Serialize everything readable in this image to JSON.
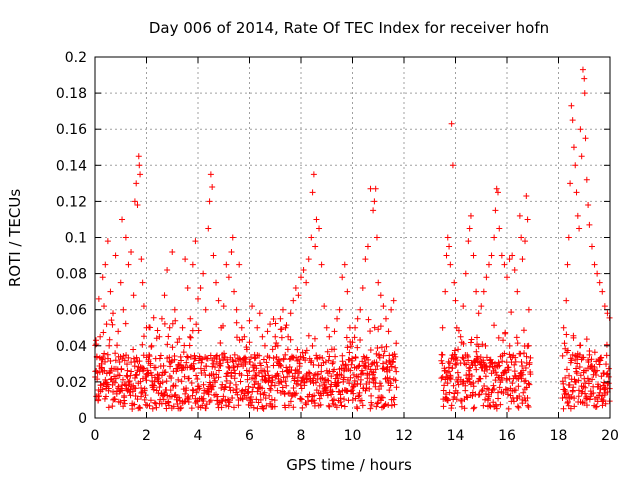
{
  "chart_data": {
    "type": "scatter",
    "title": "Day 006 of 2014, Rate Of TEC Index for receiver hofn",
    "xlabel": "GPS time / hours",
    "ylabel": "ROTI / TECUs",
    "xlim": [
      0,
      20
    ],
    "ylim": [
      0,
      0.2
    ],
    "grid": true,
    "marker": "+",
    "color": "#ff0000",
    "xticks": [
      "0",
      "2",
      "4",
      "6",
      "8",
      "10",
      "12",
      "14",
      "16",
      "18",
      "20"
    ],
    "yticks": [
      "0",
      "0.02",
      "0.04",
      "0.06",
      "0.08",
      "0.1",
      "0.12",
      "0.14",
      "0.16",
      "0.18",
      "0.2"
    ],
    "series": [
      {
        "name": "ROTI",
        "points": [
          [
            0.05,
            0.012
          ],
          [
            0.1,
            0.025
          ],
          [
            0.15,
            0.066
          ],
          [
            0.2,
            0.045
          ],
          [
            0.25,
            0.03
          ],
          [
            0.3,
            0.078
          ],
          [
            0.35,
            0.062
          ],
          [
            0.4,
            0.085
          ],
          [
            0.45,
            0.052
          ],
          [
            0.5,
            0.098
          ],
          [
            0.55,
            0.04
          ],
          [
            0.6,
            0.07
          ],
          [
            0.7,
            0.058
          ],
          [
            0.8,
            0.09
          ],
          [
            0.9,
            0.048
          ],
          [
            1.0,
            0.075
          ],
          [
            1.05,
            0.11
          ],
          [
            1.1,
            0.06
          ],
          [
            1.2,
            0.1
          ],
          [
            1.3,
            0.085
          ],
          [
            1.4,
            0.092
          ],
          [
            1.5,
            0.068
          ],
          [
            1.55,
            0.12
          ],
          [
            1.6,
            0.13
          ],
          [
            1.65,
            0.118
          ],
          [
            1.7,
            0.145
          ],
          [
            1.72,
            0.14
          ],
          [
            1.75,
            0.135
          ],
          [
            1.8,
            0.088
          ],
          [
            1.85,
            0.075
          ],
          [
            1.9,
            0.062
          ],
          [
            2.0,
            0.05
          ],
          [
            2.1,
            0.035
          ],
          [
            2.2,
            0.04
          ],
          [
            2.3,
            0.028
          ],
          [
            2.5,
            0.045
          ],
          [
            2.6,
            0.055
          ],
          [
            2.7,
            0.068
          ],
          [
            2.8,
            0.082
          ],
          [
            2.9,
            0.05
          ],
          [
            3.0,
            0.092
          ],
          [
            3.1,
            0.06
          ],
          [
            3.2,
            0.042
          ],
          [
            3.4,
            0.05
          ],
          [
            3.5,
            0.088
          ],
          [
            3.6,
            0.072
          ],
          [
            3.7,
            0.055
          ],
          [
            3.8,
            0.085
          ],
          [
            3.9,
            0.098
          ],
          [
            4.0,
            0.066
          ],
          [
            4.1,
            0.072
          ],
          [
            4.2,
            0.08
          ],
          [
            4.3,
            0.06
          ],
          [
            4.4,
            0.105
          ],
          [
            4.45,
            0.12
          ],
          [
            4.5,
            0.135
          ],
          [
            4.55,
            0.128
          ],
          [
            4.6,
            0.09
          ],
          [
            4.7,
            0.075
          ],
          [
            4.8,
            0.065
          ],
          [
            4.9,
            0.05
          ],
          [
            5.0,
            0.062
          ],
          [
            5.1,
            0.085
          ],
          [
            5.2,
            0.078
          ],
          [
            5.3,
            0.092
          ],
          [
            5.35,
            0.1
          ],
          [
            5.4,
            0.07
          ],
          [
            5.5,
            0.06
          ],
          [
            5.6,
            0.085
          ],
          [
            5.7,
            0.05
          ],
          [
            5.8,
            0.045
          ],
          [
            5.9,
            0.038
          ],
          [
            6.0,
            0.042
          ],
          [
            6.1,
            0.062
          ],
          [
            6.2,
            0.035
          ],
          [
            6.3,
            0.05
          ],
          [
            6.4,
            0.058
          ],
          [
            6.5,
            0.045
          ],
          [
            6.6,
            0.04
          ],
          [
            6.7,
            0.048
          ],
          [
            6.8,
            0.052
          ],
          [
            6.9,
            0.038
          ],
          [
            7.0,
            0.045
          ],
          [
            7.1,
            0.04
          ],
          [
            7.2,
            0.055
          ],
          [
            7.3,
            0.06
          ],
          [
            7.4,
            0.05
          ],
          [
            7.5,
            0.045
          ],
          [
            7.6,
            0.058
          ],
          [
            7.7,
            0.065
          ],
          [
            7.8,
            0.072
          ],
          [
            7.9,
            0.068
          ],
          [
            8.0,
            0.078
          ],
          [
            8.1,
            0.082
          ],
          [
            8.2,
            0.075
          ],
          [
            8.3,
            0.088
          ],
          [
            8.4,
            0.1
          ],
          [
            8.45,
            0.125
          ],
          [
            8.5,
            0.135
          ],
          [
            8.55,
            0.095
          ],
          [
            8.6,
            0.11
          ],
          [
            8.7,
            0.105
          ],
          [
            8.8,
            0.085
          ],
          [
            8.9,
            0.062
          ],
          [
            9.0,
            0.05
          ],
          [
            9.1,
            0.045
          ],
          [
            9.2,
            0.038
          ],
          [
            9.3,
            0.048
          ],
          [
            9.4,
            0.055
          ],
          [
            9.5,
            0.06
          ],
          [
            9.6,
            0.078
          ],
          [
            9.7,
            0.085
          ],
          [
            9.8,
            0.07
          ],
          [
            9.9,
            0.05
          ],
          [
            10.0,
            0.042
          ],
          [
            10.1,
            0.05
          ],
          [
            10.2,
            0.055
          ],
          [
            10.3,
            0.06
          ],
          [
            10.4,
            0.072
          ],
          [
            10.5,
            0.088
          ],
          [
            10.6,
            0.095
          ],
          [
            10.7,
            0.127
          ],
          [
            10.8,
            0.115
          ],
          [
            10.85,
            0.12
          ],
          [
            10.9,
            0.127
          ],
          [
            10.95,
            0.1
          ],
          [
            11.0,
            0.075
          ],
          [
            11.1,
            0.068
          ],
          [
            11.2,
            0.062
          ],
          [
            11.3,
            0.055
          ],
          [
            11.4,
            0.048
          ],
          [
            11.5,
            0.06
          ],
          [
            11.6,
            0.065
          ],
          [
            13.5,
            0.05
          ],
          [
            13.6,
            0.07
          ],
          [
            13.65,
            0.09
          ],
          [
            13.7,
            0.1
          ],
          [
            13.75,
            0.095
          ],
          [
            13.8,
            0.085
          ],
          [
            13.85,
            0.163
          ],
          [
            13.9,
            0.14
          ],
          [
            13.95,
            0.075
          ],
          [
            14.0,
            0.065
          ],
          [
            14.05,
            0.05
          ],
          [
            14.1,
            0.038
          ],
          [
            14.2,
            0.045
          ],
          [
            14.3,
            0.062
          ],
          [
            14.4,
            0.08
          ],
          [
            14.5,
            0.098
          ],
          [
            14.55,
            0.105
          ],
          [
            14.6,
            0.112
          ],
          [
            14.7,
            0.09
          ],
          [
            14.8,
            0.07
          ],
          [
            14.9,
            0.058
          ],
          [
            15.0,
            0.062
          ],
          [
            15.1,
            0.07
          ],
          [
            15.2,
            0.078
          ],
          [
            15.3,
            0.085
          ],
          [
            15.4,
            0.09
          ],
          [
            15.5,
            0.1
          ],
          [
            15.55,
            0.115
          ],
          [
            15.6,
            0.127
          ],
          [
            15.65,
            0.125
          ],
          [
            15.7,
            0.105
          ],
          [
            15.8,
            0.09
          ],
          [
            15.9,
            0.085
          ],
          [
            16.0,
            0.078
          ],
          [
            16.1,
            0.088
          ],
          [
            16.2,
            0.09
          ],
          [
            16.3,
            0.082
          ],
          [
            16.4,
            0.07
          ],
          [
            16.5,
            0.112
          ],
          [
            16.55,
            0.1
          ],
          [
            16.6,
            0.088
          ],
          [
            16.7,
            0.098
          ],
          [
            16.75,
            0.123
          ],
          [
            16.8,
            0.11
          ],
          [
            16.85,
            0.06
          ],
          [
            18.2,
            0.05
          ],
          [
            18.3,
            0.065
          ],
          [
            18.35,
            0.085
          ],
          [
            18.4,
            0.1
          ],
          [
            18.45,
            0.13
          ],
          [
            18.5,
            0.173
          ],
          [
            18.55,
            0.165
          ],
          [
            18.6,
            0.15
          ],
          [
            18.65,
            0.14
          ],
          [
            18.7,
            0.125
          ],
          [
            18.75,
            0.112
          ],
          [
            18.8,
            0.105
          ],
          [
            18.85,
            0.16
          ],
          [
            18.9,
            0.145
          ],
          [
            18.95,
            0.193
          ],
          [
            19.0,
            0.188
          ],
          [
            19.02,
            0.18
          ],
          [
            19.05,
            0.155
          ],
          [
            19.1,
            0.132
          ],
          [
            19.15,
            0.118
          ],
          [
            19.2,
            0.107
          ],
          [
            19.3,
            0.095
          ],
          [
            19.4,
            0.085
          ],
          [
            19.5,
            0.08
          ],
          [
            19.6,
            0.075
          ],
          [
            19.7,
            0.07
          ],
          [
            19.8,
            0.062
          ],
          [
            19.9,
            0.058
          ]
        ]
      }
    ]
  }
}
